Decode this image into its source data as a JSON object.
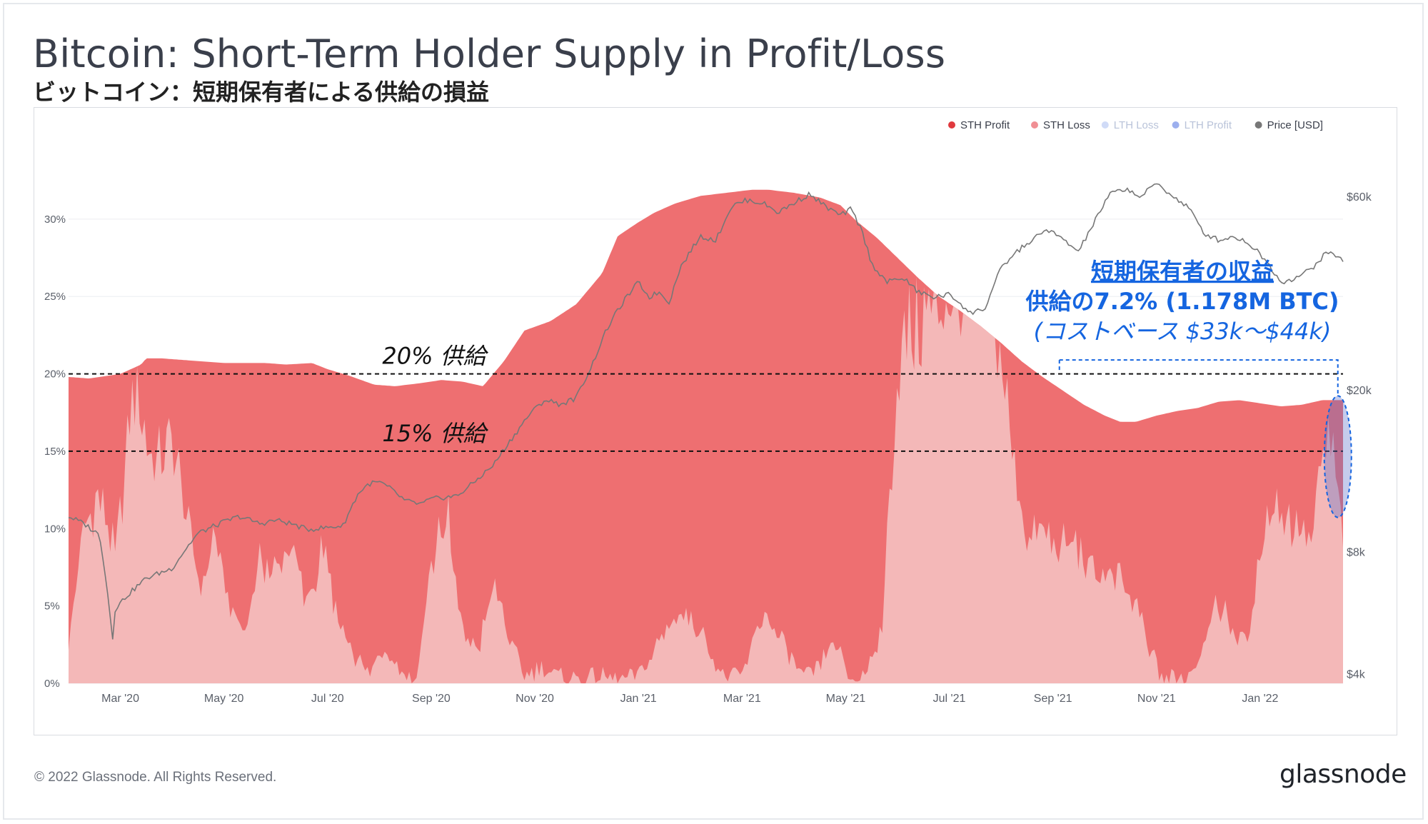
{
  "title": "Bitcoin: Short-Term Holder Supply in Profit/Loss",
  "subtitle": "ビットコイン：短期保有者による供給の損益",
  "footer": {
    "copyright": "© 2022 Glassnode. All Rights Reserved.",
    "logo": "glassnode"
  },
  "watermark": "glassnode",
  "colors": {
    "sth_profit": "#ee6f71",
    "sth_loss": "#f4b8b8",
    "lth_loss": "#a9bdf0",
    "lth_profit": "#4a6ee0",
    "price": "#777777",
    "annotation": "#1565e0"
  },
  "chart_data": {
    "type": "area",
    "title": "Bitcoin: Short-Term Holder Supply in Profit/Loss",
    "legend_position": "top-right",
    "legend": [
      {
        "name": "STH Profit",
        "color": "#e0393e",
        "muted": false
      },
      {
        "name": "STH Loss",
        "color": "#f08f94",
        "muted": false
      },
      {
        "name": "LTH Loss",
        "color": "#a9bdf0",
        "muted": true
      },
      {
        "name": "LTH Profit",
        "color": "#4a6ee0",
        "muted": true
      },
      {
        "name": "Price [USD]",
        "color": "#777777",
        "muted": false
      }
    ],
    "x_range": [
      "2020-02-16",
      "2022-03-04"
    ],
    "x_ticks": [
      {
        "label": "Mar '20",
        "month": 1
      },
      {
        "label": "May '20",
        "month": 3
      },
      {
        "label": "Jul '20",
        "month": 5
      },
      {
        "label": "Sep '20",
        "month": 7
      },
      {
        "label": "Nov '20",
        "month": 9
      },
      {
        "label": "Jan '21",
        "month": 11
      },
      {
        "label": "Mar '21",
        "month": 13
      },
      {
        "label": "May '21",
        "month": 15
      },
      {
        "label": "Jul '21",
        "month": 17
      },
      {
        "label": "Sep '21",
        "month": 19
      },
      {
        "label": "Nov '21",
        "month": 21
      },
      {
        "label": "Jan '22",
        "month": 23
      }
    ],
    "y_left": {
      "min": 0,
      "max": 33.5,
      "ticks": [
        0,
        5,
        10,
        15,
        20,
        25,
        30
      ],
      "tick_labels": [
        "0%",
        "5%",
        "10%",
        "15%",
        "20%",
        "25%",
        "30%"
      ]
    },
    "y_right": {
      "scale": "log",
      "min": 3800,
      "max": 72000,
      "ticks": [
        4000,
        8000,
        20000,
        60000
      ],
      "tick_labels": [
        "$4k",
        "$8k",
        "$20k",
        "$60k"
      ]
    },
    "x_month_offset": [
      0,
      24.6
    ],
    "sth_total_supply_pct": {
      "month": [
        0,
        0.4,
        1.0,
        1.4,
        1.5,
        1.8,
        2.2,
        3.0,
        3.8,
        4.2,
        4.7,
        5.0,
        5.4,
        5.9,
        6.3,
        6.8,
        7.2,
        7.6,
        8.0,
        8.4,
        8.8,
        9.3,
        9.8,
        10.3,
        10.6,
        11.0,
        11.3,
        11.7,
        12.2,
        12.7,
        13.2,
        13.5,
        14.0,
        14.5,
        14.9,
        15.2,
        15.6,
        16.0,
        16.4,
        16.8,
        17.2,
        17.6,
        18.0,
        18.4,
        18.8,
        19.2,
        19.6,
        20.0,
        20.3,
        20.6,
        21.0,
        21.4,
        21.8,
        22.2,
        22.6,
        23.0,
        23.4,
        23.8,
        24.2,
        24.6
      ],
      "value": [
        19.8,
        19.7,
        20.0,
        20.6,
        21.0,
        21.0,
        20.9,
        20.7,
        20.7,
        20.6,
        20.7,
        20.3,
        19.9,
        19.3,
        19.2,
        19.4,
        19.6,
        19.5,
        19.2,
        20.8,
        22.8,
        23.4,
        24.5,
        26.5,
        28.9,
        29.8,
        30.4,
        31.0,
        31.5,
        31.7,
        31.9,
        31.9,
        31.7,
        31.4,
        30.9,
        29.9,
        28.8,
        27.5,
        26.2,
        25.0,
        24.1,
        23.1,
        22.0,
        20.8,
        19.8,
        18.9,
        18.0,
        17.3,
        16.9,
        16.9,
        17.3,
        17.6,
        17.8,
        18.2,
        18.3,
        18.1,
        17.9,
        18.0,
        18.3,
        18.3
      ]
    },
    "sth_loss_pct": {
      "month": [
        0,
        0.3,
        0.6,
        0.9,
        1.2,
        1.3,
        1.5,
        1.7,
        2.0,
        2.3,
        2.6,
        2.8,
        3.1,
        3.4,
        3.7,
        4.0,
        4.3,
        4.6,
        4.9,
        5.2,
        5.5,
        5.8,
        6.1,
        6.4,
        6.7,
        7.0,
        7.3,
        7.6,
        7.9,
        8.2,
        8.5,
        8.8,
        9.1,
        9.4,
        9.8,
        10.2,
        10.6,
        11.0,
        11.4,
        11.8,
        12.2,
        12.6,
        13.0,
        13.4,
        13.8,
        14.2,
        14.5,
        14.8,
        15.0,
        15.1,
        15.2,
        15.4,
        15.7,
        16.0,
        16.3,
        16.6,
        16.9,
        17.2,
        17.5,
        17.8,
        18.0,
        18.2,
        18.5,
        18.8,
        19.1,
        19.4,
        19.7,
        20.0,
        20.3,
        20.6,
        20.9,
        21.1,
        21.3,
        21.6,
        21.9,
        22.2,
        22.5,
        22.8,
        23.1,
        23.4,
        23.7,
        24.0,
        24.3,
        24.6
      ],
      "value": [
        3.0,
        10.0,
        12.0,
        8.0,
        17.5,
        19.5,
        16.0,
        14.0,
        16.0,
        10.0,
        6.0,
        9.5,
        5.0,
        3.0,
        8.0,
        7.0,
        9.0,
        5.0,
        8.5,
        4.0,
        2.0,
        0.5,
        2.5,
        1.0,
        0.0,
        8.0,
        11.0,
        3.5,
        2.0,
        6.5,
        3.0,
        0.5,
        1.0,
        0.5,
        0.3,
        0.5,
        0.2,
        0.5,
        2.5,
        5.0,
        3.5,
        0.5,
        0.5,
        4.5,
        2.5,
        0.3,
        1.0,
        3.0,
        0.5,
        0.3,
        0.2,
        0.8,
        3.5,
        20.5,
        23.0,
        24.0,
        25.0,
        25.5,
        25.5,
        25.3,
        22.0,
        15.0,
        9.5,
        10.0,
        8.5,
        9.0,
        7.5,
        7.0,
        6.5,
        5.0,
        2.0,
        0.3,
        0.4,
        0.3,
        2.5,
        5.5,
        3.0,
        3.0,
        11.0,
        11.5,
        10.0,
        9.0,
        16.5,
        10.0
      ]
    },
    "price_usd": {
      "month": [
        0,
        0.3,
        0.6,
        0.8,
        0.85,
        0.9,
        1.1,
        1.5,
        2.0,
        2.5,
        3.0,
        3.3,
        3.7,
        4.0,
        4.3,
        4.6,
        5.0,
        5.3,
        5.6,
        5.8,
        6.0,
        6.2,
        6.5,
        6.8,
        7.0,
        7.2,
        7.5,
        7.8,
        8.2,
        8.6,
        8.9,
        9.2,
        9.5,
        9.8,
        10.1,
        10.4,
        10.7,
        11.0,
        11.2,
        11.4,
        11.6,
        11.8,
        12.0,
        12.2,
        12.5,
        12.8,
        13.1,
        13.4,
        13.7,
        14.0,
        14.3,
        14.6,
        14.9,
        15.1,
        15.3,
        15.5,
        15.8,
        16.1,
        16.4,
        16.7,
        17.0,
        17.2,
        17.4,
        17.7,
        18.0,
        18.3,
        18.6,
        18.9,
        19.2,
        19.5,
        19.8,
        20.1,
        20.4,
        20.7,
        21.0,
        21.2,
        21.4,
        21.6,
        21.9,
        22.2,
        22.5,
        22.8,
        23.1,
        23.4,
        23.7,
        24.0,
        24.3,
        24.6
      ],
      "value": [
        9800,
        9400,
        8800,
        5600,
        4900,
        5800,
        6200,
        6900,
        7300,
        8900,
        9500,
        9800,
        9400,
        9600,
        9400,
        9100,
        9200,
        9300,
        11200,
        11800,
        11900,
        11500,
        10700,
        10500,
        10800,
        10900,
        11000,
        11800,
        13100,
        15500,
        17500,
        19000,
        18500,
        19200,
        23000,
        28500,
        33000,
        37000,
        34000,
        35000,
        33000,
        40000,
        44000,
        48000,
        47000,
        57000,
        59000,
        58000,
        55000,
        58000,
        61000,
        57000,
        54000,
        56000,
        50000,
        41000,
        37000,
        38000,
        35000,
        34000,
        34500,
        33000,
        31000,
        32000,
        40000,
        44000,
        47000,
        50000,
        47000,
        44000,
        52000,
        61000,
        63000,
        60000,
        65000,
        62000,
        59000,
        57000,
        49000,
        47000,
        48000,
        46000,
        42000,
        37000,
        38000,
        40000,
        44000,
        42000
      ]
    },
    "reference_lines": [
      {
        "y": 20,
        "label": "20% 供給"
      },
      {
        "y": 15,
        "label": "15% 供給"
      }
    ],
    "annotation": {
      "line1": "短期保有者の収益",
      "line2": "供給の7.2% (1.178M BTC)",
      "line3": "(コストベース $33k〜$44k)",
      "highlight_month": 24.5,
      "highlight_y_range": [
        11.0,
        18.3
      ]
    }
  }
}
